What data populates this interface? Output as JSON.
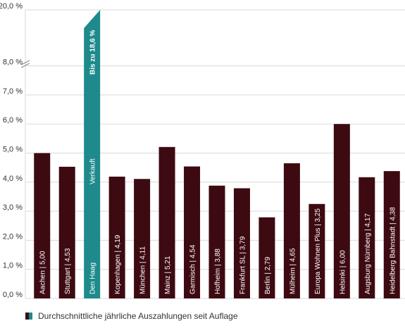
{
  "chart_data": {
    "type": "bar",
    "title": "",
    "xlabel": "",
    "ylabel": "",
    "y_ticks": [
      "0,0 %",
      "1,0 %",
      "2,0 %",
      "3,0 %",
      "4,0 %",
      "5,0 %",
      "6,0 %",
      "7,0 %",
      "8,0 %"
    ],
    "y_top_tick": "20,0 %",
    "ylim": [
      0,
      8
    ],
    "axis_break": true,
    "categories": [
      "Aachen | 5,00",
      "Stuttgart | 4,53",
      "Den Haag",
      "Kopenhagen | 4,19",
      "München | 4,11",
      "Mainz | 5,21",
      "Garmisch | 4,54",
      "Hofheim | 3,88",
      "Frankfurt SL | 3,79",
      "Berlin | 2,79",
      "Mülheim | 4,65",
      "Europa Wohnen Plus | 3,25",
      "Helsinki | 6,00",
      "Augsburg Nürnberg | 4,17",
      "Heidelberg Bahnstadt | 4,38"
    ],
    "values": [
      5.0,
      4.53,
      18.6,
      4.19,
      4.11,
      5.21,
      4.54,
      3.88,
      3.79,
      2.79,
      4.65,
      3.25,
      6.0,
      4.17,
      4.38
    ],
    "highlight": {
      "index": 2,
      "top_label": "Bis zu 18,6 %",
      "mid_label": "Verkauft"
    },
    "series": [
      {
        "name": "Durchschnittliche jährliche Auszahlungen seit Auflage",
        "values": [
          5.0,
          4.53,
          18.6,
          4.19,
          4.11,
          5.21,
          4.54,
          3.88,
          3.79,
          2.79,
          4.65,
          3.25,
          6.0,
          4.17,
          4.38
        ]
      }
    ],
    "legend_position": "bottom-left",
    "grid": true
  },
  "legend": {
    "label": "Durchschnittliche jährliche Auszahlungen seit Auflage"
  },
  "colors": {
    "bar": "#3d0a12",
    "highlight": "#1e8a8c",
    "grid": "#d9d9d9",
    "text": "#333333"
  }
}
